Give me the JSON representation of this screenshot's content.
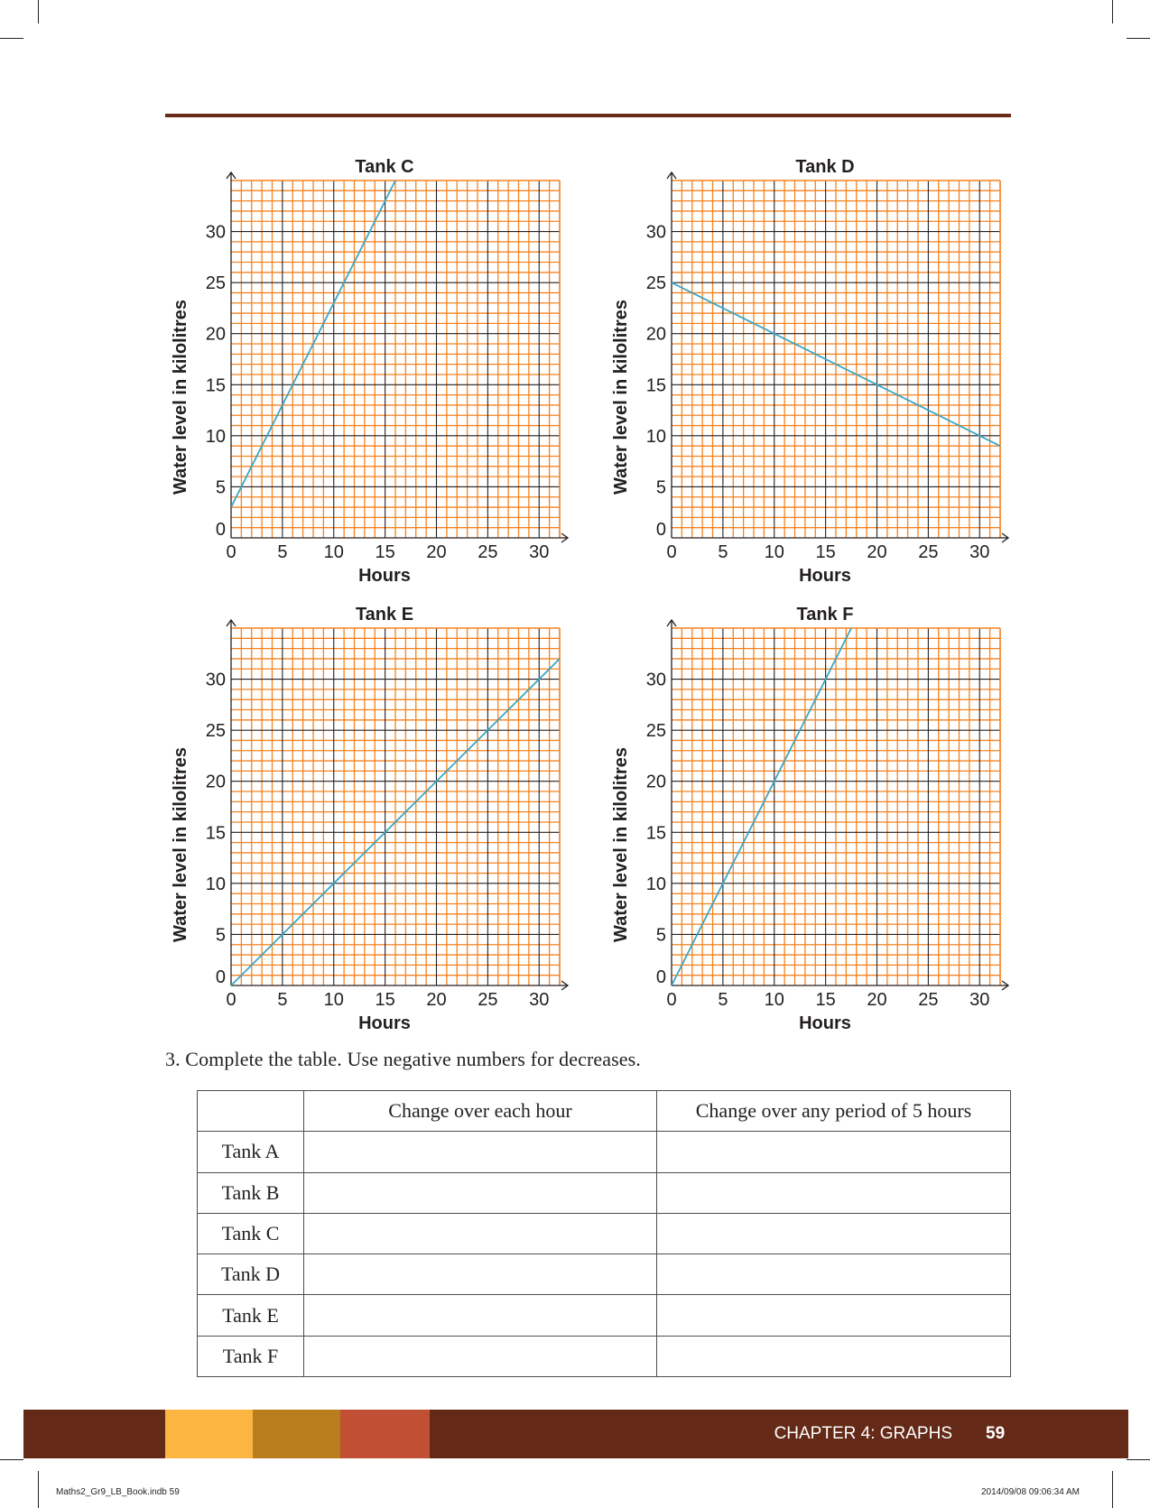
{
  "charts": [
    {
      "title": "Tank C",
      "xlabel": "Hours",
      "ylabel": "Water level in kilolitres",
      "x_ticks": [
        "0",
        "5",
        "10",
        "15",
        "20",
        "25",
        "30"
      ],
      "y_ticks": [
        "0",
        "5",
        "10",
        "15",
        "20",
        "25",
        "30"
      ],
      "line_color": "#3ca6c4",
      "start": [
        0,
        3
      ],
      "end": [
        16,
        35
      ]
    },
    {
      "title": "Tank D",
      "xlabel": "Hours",
      "ylabel": "Water level in kilolitres",
      "x_ticks": [
        "0",
        "5",
        "10",
        "15",
        "20",
        "25",
        "30"
      ],
      "y_ticks": [
        "0",
        "5",
        "10",
        "15",
        "20",
        "25",
        "30"
      ],
      "line_color": "#3ca6c4",
      "start": [
        0,
        25
      ],
      "end": [
        32,
        9
      ]
    },
    {
      "title": "Tank E",
      "xlabel": "Hours",
      "ylabel": "Water level in kilolitres",
      "x_ticks": [
        "0",
        "5",
        "10",
        "15",
        "20",
        "25",
        "30"
      ],
      "y_ticks": [
        "0",
        "5",
        "10",
        "15",
        "20",
        "25",
        "30"
      ],
      "line_color": "#3ca6c4",
      "start": [
        0,
        0
      ],
      "end": [
        32,
        32
      ]
    },
    {
      "title": "Tank F",
      "xlabel": "Hours",
      "ylabel": "Water level in kilolitres",
      "x_ticks": [
        "0",
        "5",
        "10",
        "15",
        "20",
        "25",
        "30"
      ],
      "y_ticks": [
        "0",
        "5",
        "10",
        "15",
        "20",
        "25",
        "30"
      ],
      "line_color": "#3ca6c4",
      "start": [
        0,
        0
      ],
      "end": [
        17.5,
        35
      ]
    }
  ],
  "chart_data": [
    {
      "type": "line",
      "title": "Tank C",
      "xlabel": "Hours",
      "ylabel": "Water level in kilolitres",
      "xlim": [
        0,
        32
      ],
      "ylim": [
        0,
        35
      ],
      "grid": true,
      "series": [
        {
          "x": [
            0,
            5,
            10,
            15,
            16
          ],
          "y": [
            3,
            13,
            23,
            33,
            35
          ]
        }
      ]
    },
    {
      "type": "line",
      "title": "Tank D",
      "xlabel": "Hours",
      "ylabel": "Water level in kilolitres",
      "xlim": [
        0,
        32
      ],
      "ylim": [
        0,
        35
      ],
      "grid": true,
      "series": [
        {
          "x": [
            0,
            10,
            20,
            30,
            32
          ],
          "y": [
            25,
            20,
            15,
            10,
            9
          ]
        }
      ]
    },
    {
      "type": "line",
      "title": "Tank E",
      "xlabel": "Hours",
      "ylabel": "Water level in kilolitres",
      "xlim": [
        0,
        32
      ],
      "ylim": [
        0,
        35
      ],
      "grid": true,
      "series": [
        {
          "x": [
            0,
            5,
            10,
            15,
            20,
            25,
            30,
            32
          ],
          "y": [
            0,
            5,
            10,
            15,
            20,
            25,
            30,
            32
          ]
        }
      ]
    },
    {
      "type": "line",
      "title": "Tank F",
      "xlabel": "Hours",
      "ylabel": "Water level in kilolitres",
      "xlim": [
        0,
        32
      ],
      "ylim": [
        0,
        35
      ],
      "grid": true,
      "series": [
        {
          "x": [
            0,
            5,
            10,
            15,
            17.5
          ],
          "y": [
            0,
            10,
            20,
            30,
            35
          ]
        }
      ]
    }
  ],
  "question": {
    "text": "3. Complete the table. Use negative numbers for decreases."
  },
  "table": {
    "headers": [
      "",
      "Change over each hour",
      "Change over any period of 5 hours"
    ],
    "rows": [
      "Tank A",
      "Tank B",
      "Tank C",
      "Tank D",
      "Tank E",
      "Tank F"
    ]
  },
  "footer": {
    "chapter": "CHAPTER 4: GRAPHS",
    "page": "59",
    "band_color": "#652a17",
    "swatches": [
      "#fbb540",
      "#b97d1d",
      "#c14f34"
    ]
  },
  "slug": {
    "file": "Maths2_Gr9_LB_Book.indb   59",
    "timestamp": "2014/09/08   09:06:34 AM"
  },
  "colors": {
    "grid_major": "#231f20",
    "grid_minor": "#f58220",
    "line": "#3ca6c4"
  }
}
